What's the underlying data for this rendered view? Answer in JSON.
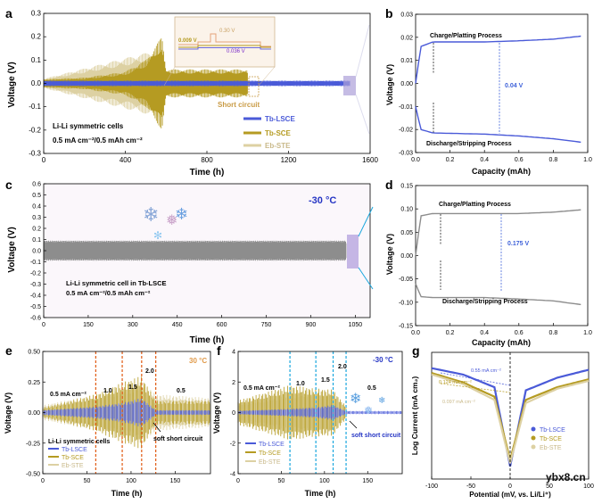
{
  "watermark": "ybx8.cn",
  "colors": {
    "lsce": "#4a5ad8",
    "sce": "#b59b22",
    "eb": "#ddd1a3",
    "grey": "#8d8d8d",
    "red": "#e05a12",
    "cyan": "#1aa7de",
    "blue": "#2535c4",
    "box": "#ada0d8"
  },
  "chart_data": [
    {
      "panel": "a",
      "type": "line",
      "xlabel": "Time (h)",
      "ylabel": "Voltage (V)",
      "xlim": [
        0,
        1600
      ],
      "ylim": [
        -0.3,
        0.3
      ],
      "xticks": [
        "0",
        "400",
        "800",
        "1200",
        "1600"
      ],
      "yticks": [
        "-0.3",
        "-0.2",
        "-0.1",
        "0.0",
        "0.1",
        "0.2",
        "0.3"
      ],
      "annotations": [
        "Li-Li symmetric cells",
        "0.5 mA cm⁻²/0.5 mAh cm⁻²",
        "Short circuit"
      ],
      "inset": {
        "labels": [
          "0.009 V",
          "0.30 V",
          "0.036 V"
        ]
      },
      "series": [
        {
          "name": "Tb-LSCE",
          "x": [
            0,
            1500
          ],
          "amplitude": [
            0.012,
            0.012
          ]
        },
        {
          "name": "Tb-SCE",
          "x": [
            0,
            200,
            400,
            500,
            580,
            600,
            1000
          ],
          "amplitude": [
            0.018,
            0.025,
            0.05,
            0.1,
            0.2,
            0.06,
            0.06
          ]
        },
        {
          "name": "Eb-STE",
          "x": [
            0,
            590
          ],
          "amplitude": [
            0.02,
            0.15
          ]
        }
      ]
    },
    {
      "panel": "b",
      "type": "line",
      "xlabel": "Capacity (mAh)",
      "ylabel": "Voltage (V)",
      "xlim": [
        0,
        1.0
      ],
      "ylim": [
        -0.03,
        0.03
      ],
      "xticks": [
        "0.0",
        "0.2",
        "0.4",
        "0.6",
        "0.8",
        "1.0"
      ],
      "yticks": [
        "-0.03",
        "-0.02",
        "-0.01",
        "0.00",
        "0.01",
        "0.02",
        "0.03"
      ],
      "annotations": [
        "Charge/Platting Process",
        "0.04 V",
        "Discharge/Stripping Process"
      ],
      "series": [
        {
          "name": "charge",
          "x": [
            0,
            0.03,
            0.1,
            0.4,
            0.6,
            0.8,
            0.96
          ],
          "y": [
            0.0,
            0.016,
            0.018,
            0.018,
            0.0185,
            0.0192,
            0.0205
          ]
        },
        {
          "name": "discharge",
          "x": [
            0,
            0.03,
            0.1,
            0.4,
            0.6,
            0.8,
            0.96
          ],
          "y": [
            -0.01,
            -0.02,
            -0.0215,
            -0.022,
            -0.0228,
            -0.024,
            -0.0255
          ]
        }
      ]
    },
    {
      "panel": "c",
      "type": "line",
      "xlabel": "Time (h)",
      "ylabel": "Voltage (V)",
      "xlim": [
        0,
        1100
      ],
      "ylim": [
        -0.6,
        0.6
      ],
      "xticks": [
        "0",
        "150",
        "300",
        "450",
        "600",
        "750",
        "900",
        "1050"
      ],
      "yticks": [
        "-0.6",
        "-0.5",
        "-0.4",
        "-0.3",
        "-0.2",
        "-0.1",
        "0.0",
        "0.1",
        "0.2",
        "0.3",
        "0.4",
        "0.5",
        "0.6"
      ],
      "annotations": [
        "-30 °C",
        "Li-Li symmetric cell in Tb-LSCE",
        "0.5 mA cm⁻²/0.5 mAh cm⁻²"
      ],
      "series": [
        {
          "name": "Tb-LSCE",
          "x": [
            0,
            1020
          ],
          "amplitude": [
            0.09,
            0.09
          ]
        }
      ]
    },
    {
      "panel": "d",
      "type": "line",
      "xlabel": "Capacity (mAh)",
      "ylabel": "Voltage (V)",
      "xlim": [
        0,
        1.0
      ],
      "ylim": [
        -0.15,
        0.15
      ],
      "xticks": [
        "0.0",
        "0.2",
        "0.4",
        "0.6",
        "0.8",
        "1.0"
      ],
      "yticks": [
        "-0.15",
        "-0.10",
        "-0.05",
        "0.00",
        "0.05",
        "0.10",
        "0.15"
      ],
      "annotations": [
        "Charge/Platting Process",
        "0.175 V",
        "Discharge/Stripping Process"
      ],
      "series": [
        {
          "name": "charge",
          "x": [
            0,
            0.03,
            0.1,
            0.4,
            0.6,
            0.8,
            0.96
          ],
          "y": [
            0.0,
            0.085,
            0.09,
            0.09,
            0.09,
            0.093,
            0.098
          ]
        },
        {
          "name": "discharge",
          "x": [
            0,
            0.03,
            0.1,
            0.4,
            0.6,
            0.8,
            0.96
          ],
          "y": [
            -0.06,
            -0.088,
            -0.09,
            -0.09,
            -0.093,
            -0.097,
            -0.105
          ]
        }
      ]
    },
    {
      "panel": "e",
      "type": "line",
      "xlabel": "Time (h)",
      "ylabel": "Voltage (V)",
      "xlim": [
        0,
        190
      ],
      "ylim": [
        -0.5,
        0.5
      ],
      "xticks": [
        "0",
        "50",
        "100",
        "150"
      ],
      "yticks": [
        "-0.50",
        "-0.25",
        "0.00",
        "0.25",
        "0.50"
      ],
      "annotations": [
        "30 °C",
        "0.5 mA cm⁻²",
        "1.0",
        "1.5",
        "2.0",
        "0.5",
        "Li-Li symmetric cells",
        "soft short circuit"
      ],
      "rate_lines": [
        60,
        90,
        112,
        128
      ],
      "series": [
        {
          "name": "Tb-LSCE",
          "x": [
            0,
            60,
            90,
            112,
            128,
            190
          ],
          "amplitude": [
            0.02,
            0.05,
            0.08,
            0.12,
            0.02,
            0.02
          ]
        },
        {
          "name": "Tb-SCE",
          "x": [
            0,
            60,
            90,
            112,
            128,
            190
          ],
          "amplitude": [
            0.04,
            0.15,
            0.25,
            0.3,
            0.1,
            0.1
          ]
        },
        {
          "name": "Eb-STE",
          "x": [
            0,
            60,
            90,
            112,
            128,
            190
          ],
          "amplitude": [
            0.06,
            0.15,
            0.2,
            0.25,
            0.15,
            0.12
          ]
        }
      ]
    },
    {
      "panel": "f",
      "type": "line",
      "xlabel": "Time (h)",
      "ylabel": "Voltage (V)",
      "xlim": [
        0,
        190
      ],
      "ylim": [
        -4,
        4
      ],
      "xticks": [
        "0",
        "50",
        "100",
        "150"
      ],
      "yticks": [
        "-4",
        "-2",
        "0",
        "2",
        "4"
      ],
      "annotations": [
        "-30 °C",
        "0.5 mA cm⁻²",
        "1.0",
        "1.5",
        "2.0",
        "0.5",
        "soft short circuit"
      ],
      "rate_lines": [
        60,
        90,
        110,
        125
      ],
      "series": [
        {
          "name": "Tb-LSCE",
          "x": [
            0,
            60,
            90,
            110,
            125,
            190
          ],
          "amplitude": [
            0.12,
            0.25,
            0.35,
            0.5,
            0.1,
            0.1
          ]
        },
        {
          "name": "Tb-SCE",
          "x": [
            0,
            60,
            90,
            110,
            125
          ],
          "amplitude": [
            0.8,
            1.8,
            1.6,
            1.5,
            0.4
          ]
        },
        {
          "name": "Eb-STE",
          "x": [
            0,
            60,
            90,
            110
          ],
          "amplitude": [
            0.6,
            1.3,
            1.5,
            1.4
          ]
        }
      ]
    },
    {
      "panel": "g",
      "type": "line",
      "xlabel": "Potential (mV, vs. Li/Li⁺)",
      "ylabel": "Log Current (mA cm₂)",
      "xlim": [
        -100,
        100
      ],
      "xticks": [
        "-100",
        "-50",
        "0",
        "50",
        "100"
      ],
      "annotations": [
        "0.55 mA cm⁻²",
        "0.124 mA cm⁻²",
        "0.097 mA cm⁻²"
      ],
      "series": [
        {
          "name": "Tb-LSCE",
          "x": [
            -100,
            -60,
            -20,
            0,
            20,
            60,
            100
          ],
          "y": [
            0.5,
            0.3,
            -0.1,
            -2.6,
            -0.2,
            0.2,
            0.45
          ]
        },
        {
          "name": "Tb-SCE",
          "x": [
            -100,
            -60,
            -20,
            0,
            20,
            60,
            100
          ],
          "y": [
            0.35,
            0.05,
            -0.4,
            -2.4,
            -0.5,
            -0.1,
            0.15
          ]
        },
        {
          "name": "Eb-STE",
          "x": [
            -100,
            -60,
            -20,
            0,
            20,
            60,
            100
          ],
          "y": [
            0.3,
            0.0,
            -0.5,
            -2.5,
            -0.6,
            -0.15,
            0.1
          ]
        }
      ]
    }
  ],
  "panel_labels": [
    "a",
    "b",
    "c",
    "d",
    "e",
    "f",
    "g"
  ]
}
